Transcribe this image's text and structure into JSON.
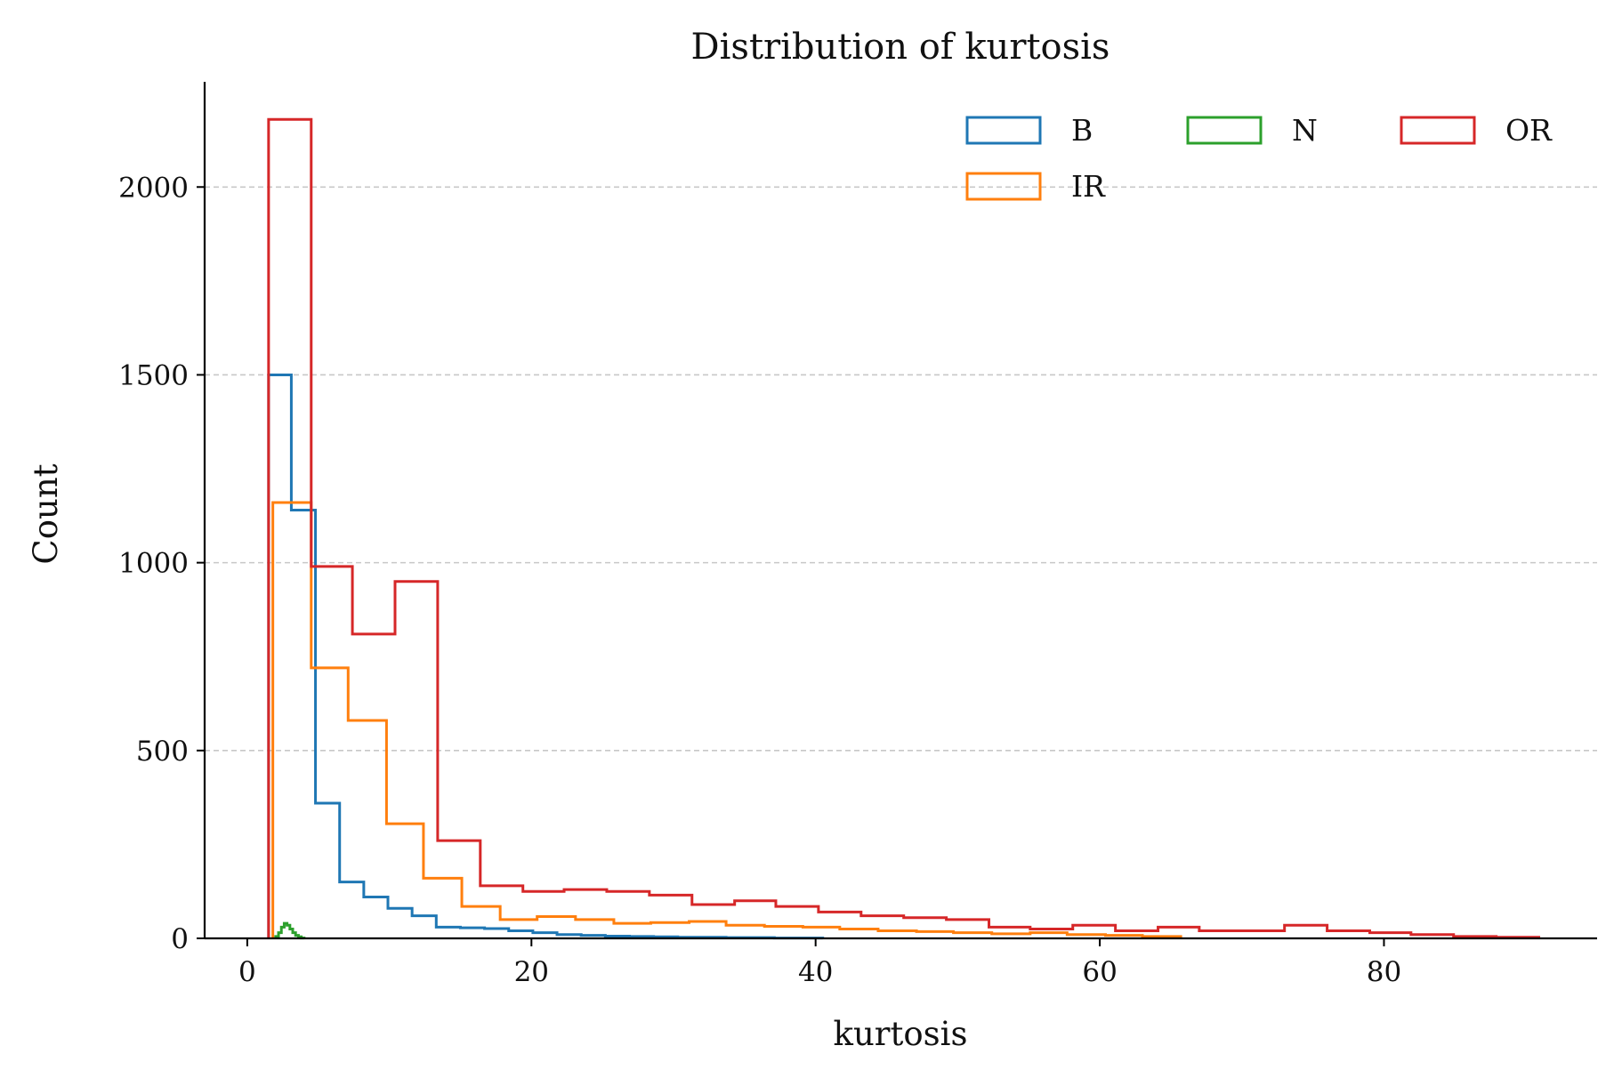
{
  "chart_data": {
    "type": "histogram",
    "title": "Distribution of kurtosis",
    "xlabel": "kurtosis",
    "ylabel": "Count",
    "xlim": [
      -3,
      95
    ],
    "ylim": [
      0,
      2280
    ],
    "xticks": [
      0,
      20,
      40,
      60,
      80
    ],
    "yticks": [
      0,
      500,
      1000,
      1500,
      2000
    ],
    "grid": "y-dashed",
    "legend_placement": "top-right",
    "series": [
      {
        "name": "B",
        "color": "#1f77b4",
        "edges": [
          1.5,
          3.1,
          4.8,
          6.5,
          8.2,
          9.9,
          11.6,
          13.3,
          15.0,
          16.7,
          18.4,
          20.1,
          21.8,
          23.5,
          25.2,
          26.9,
          28.6,
          30.3,
          32.0,
          33.7,
          35.4,
          37.1,
          38.8,
          40.5
        ],
        "counts": [
          1500,
          1140,
          360,
          150,
          110,
          80,
          60,
          30,
          28,
          26,
          20,
          15,
          10,
          8,
          6,
          5,
          4,
          3,
          3,
          2,
          2,
          1,
          1
        ]
      },
      {
        "name": "IR",
        "color": "#ff7f0e",
        "edges": [
          1.8,
          4.5,
          7.1,
          9.8,
          12.4,
          15.1,
          17.8,
          20.4,
          23.1,
          25.8,
          28.4,
          31.1,
          33.7,
          36.4,
          39.1,
          41.7,
          44.4,
          47.1,
          49.7,
          52.4,
          55.1,
          57.7,
          60.4,
          63.0,
          65.7
        ],
        "counts": [
          1160,
          720,
          580,
          305,
          160,
          85,
          50,
          58,
          50,
          40,
          42,
          45,
          35,
          32,
          30,
          25,
          20,
          18,
          15,
          12,
          15,
          10,
          8,
          5
        ]
      },
      {
        "name": "N",
        "color": "#2ca02c",
        "edges": [
          2.0,
          2.2,
          2.4,
          2.6,
          2.8,
          3.0,
          3.2,
          3.4,
          3.6,
          3.8,
          4.0
        ],
        "counts": [
          5,
          15,
          30,
          40,
          35,
          25,
          15,
          8,
          4,
          1
        ]
      },
      {
        "name": "OR",
        "color": "#d62728",
        "edges": [
          1.5,
          4.5,
          7.4,
          10.4,
          13.4,
          16.4,
          19.4,
          22.3,
          25.3,
          28.3,
          31.3,
          34.3,
          37.2,
          40.2,
          43.2,
          46.2,
          49.2,
          52.2,
          55.1,
          58.1,
          61.1,
          64.1,
          67.0,
          70.0,
          73.0,
          76.0,
          79.0,
          81.9,
          84.9,
          87.9,
          90.9
        ],
        "counts": [
          2180,
          990,
          810,
          950,
          260,
          140,
          125,
          130,
          125,
          115,
          90,
          100,
          85,
          70,
          60,
          55,
          50,
          30,
          25,
          35,
          20,
          30,
          20,
          20,
          35,
          20,
          15,
          10,
          5,
          3
        ]
      }
    ]
  }
}
